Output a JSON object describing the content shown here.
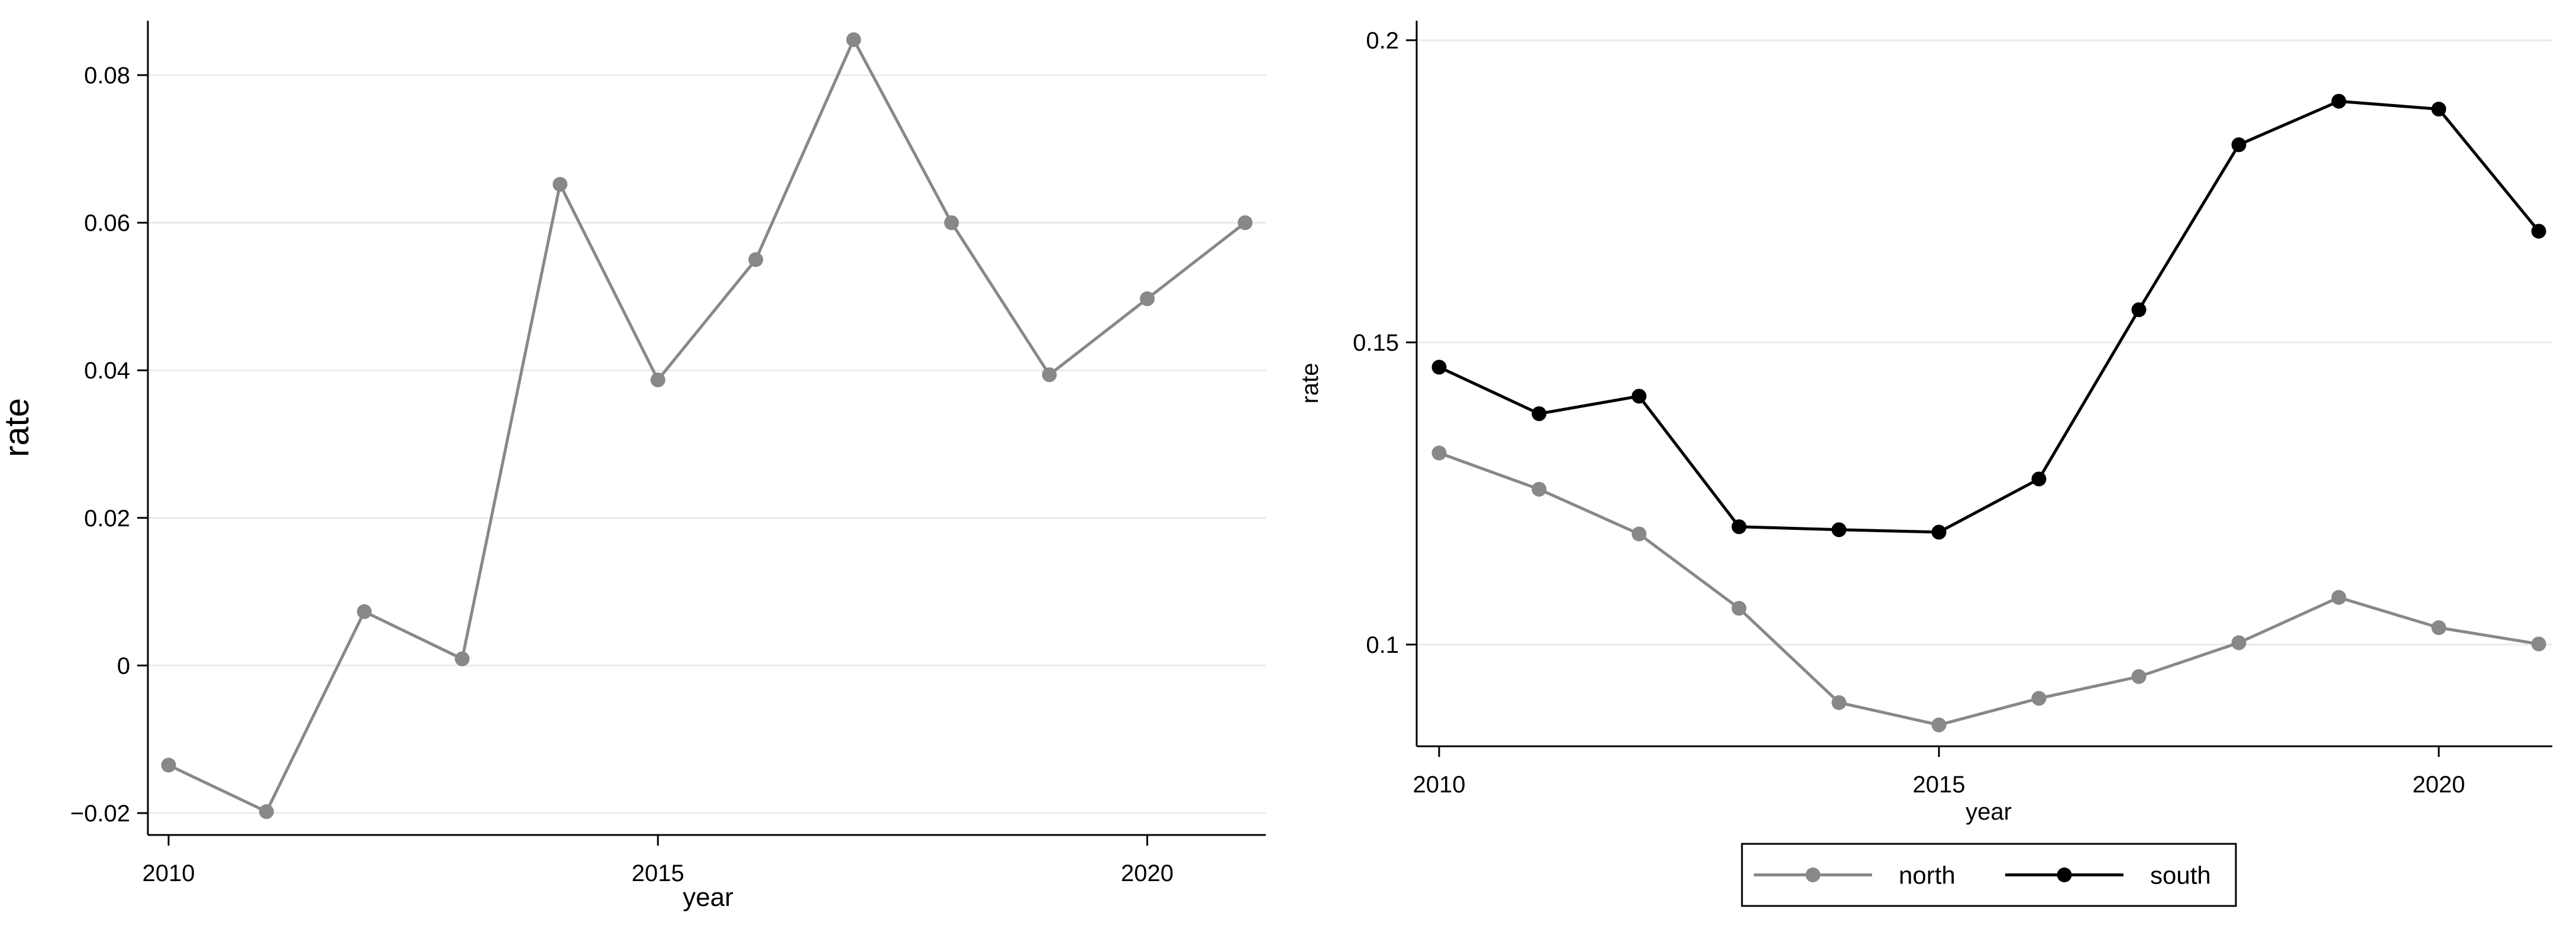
{
  "chart_data": [
    {
      "type": "line",
      "xlabel": "year",
      "ylabel": "rate",
      "xlim": [
        2010,
        2021
      ],
      "ylim": [
        -0.02,
        0.085
      ],
      "xticks": [
        2010,
        2015,
        2020
      ],
      "xtick_labels": [
        "2010",
        "2015",
        "2020"
      ],
      "yticks": [
        -0.02,
        0,
        0.02,
        0.04,
        0.06,
        0.08
      ],
      "ytick_labels": [
        "−0.02",
        "0",
        "0.02",
        "0.04",
        "0.06",
        "0.08"
      ],
      "grid": true,
      "x": [
        2010,
        2011,
        2012,
        2013,
        2014,
        2015,
        2016,
        2017,
        2018,
        2019,
        2020,
        2021
      ],
      "series": [
        {
          "color": "#888888",
          "values": [
            -0.0135,
            -0.0198,
            0.0073,
            0.0009,
            0.0652,
            0.0387,
            0.055,
            0.0848,
            0.06,
            0.0394,
            0.0497,
            0.06
          ]
        }
      ]
    },
    {
      "type": "line",
      "xlabel": "year",
      "ylabel": "rate",
      "xlim": [
        2010,
        2021
      ],
      "ylim": [
        0.083,
        0.2
      ],
      "xticks": [
        2010,
        2015,
        2020
      ],
      "xtick_labels": [
        "2010",
        "2015",
        "2020"
      ],
      "yticks": [
        0.1,
        0.15,
        0.2
      ],
      "ytick_labels": [
        "0.1",
        "0.15",
        "0.2"
      ],
      "grid": true,
      "legend_position": "bottom",
      "x": [
        2010,
        2011,
        2012,
        2013,
        2014,
        2015,
        2016,
        2017,
        2018,
        2019,
        2020,
        2021
      ],
      "series": [
        {
          "name": "north",
          "color": "#888888",
          "values": [
            0.1317,
            0.1257,
            0.1183,
            0.106,
            0.0904,
            0.0867,
            0.0911,
            0.0947,
            0.1003,
            0.1078,
            0.1028,
            0.1001
          ]
        },
        {
          "name": "south",
          "color": "#000000",
          "values": [
            0.1459,
            0.1382,
            0.1411,
            0.1195,
            0.119,
            0.1186,
            0.1274,
            0.1554,
            0.1827,
            0.1899,
            0.1886,
            0.1684
          ]
        }
      ]
    }
  ]
}
